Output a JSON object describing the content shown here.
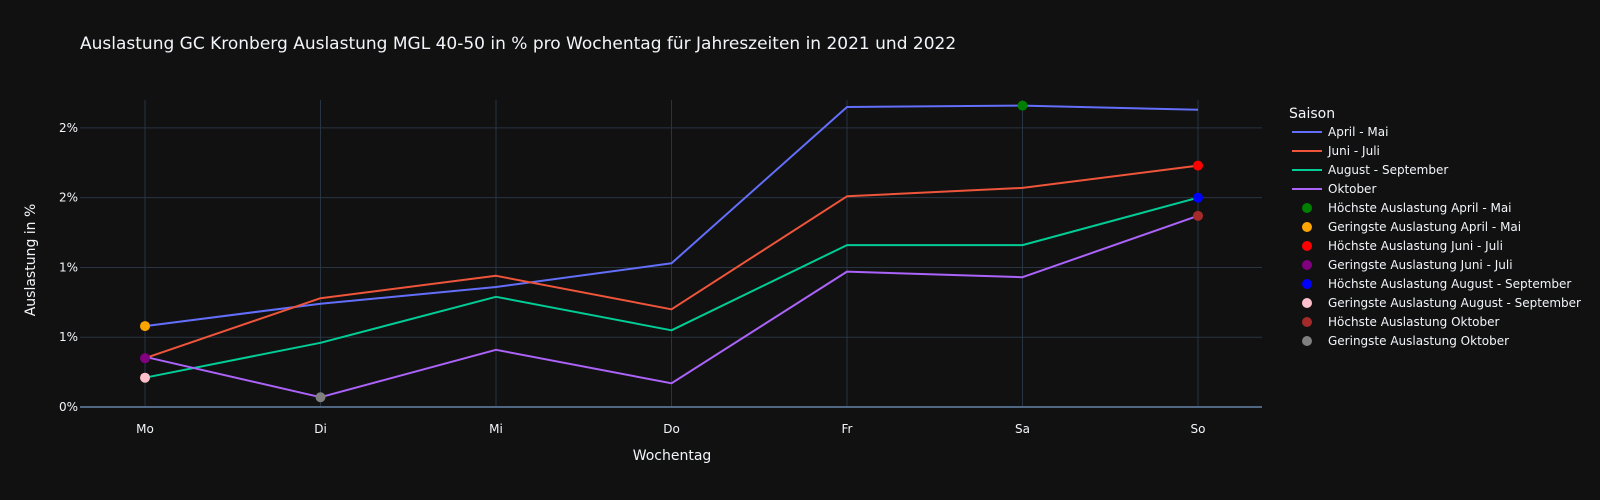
{
  "chart_data": {
    "type": "line",
    "title": "Auslastung GC Kronberg Auslastung MGL 40-50 in % pro Wochentag für Jahreszeiten in 2021 und 2022",
    "xlabel": "Wochentag",
    "ylabel": "Auslastung in %",
    "categories": [
      "Mo",
      "Di",
      "Mi",
      "Do",
      "Fr",
      "Sa",
      "So"
    ],
    "y_tick_values": [
      0,
      0.5,
      1.0,
      1.5,
      2.0
    ],
    "y_tick_labels": [
      "0%",
      "1%",
      "1%",
      "2%",
      "2%"
    ],
    "ylim": [
      0,
      2.2
    ],
    "grid": true,
    "legend_title": "Saison",
    "legend_position": "right",
    "series": [
      {
        "name": "April - Mai",
        "color": "#636efa",
        "values": [
          0.58,
          0.74,
          0.86,
          1.03,
          2.15,
          2.16,
          2.13
        ]
      },
      {
        "name": "Juni - Juli",
        "color": "#ef553b",
        "values": [
          0.35,
          0.78,
          0.94,
          0.7,
          1.51,
          1.57,
          1.73
        ]
      },
      {
        "name": "August - September",
        "color": "#00cc96",
        "values": [
          0.21,
          0.46,
          0.79,
          0.55,
          1.16,
          1.16,
          1.5
        ]
      },
      {
        "name": "Oktober",
        "color": "#ab63fa",
        "values": [
          0.36,
          0.07,
          0.41,
          0.17,
          0.97,
          0.93,
          1.37
        ]
      }
    ],
    "markers": [
      {
        "name": "Höchste Auslastung April - Mai",
        "color": "#008000",
        "x": "Sa",
        "y": 2.16
      },
      {
        "name": "Geringste Auslastung April - Mai",
        "color": "#ffa500",
        "x": "Mo",
        "y": 0.58
      },
      {
        "name": "Höchste Auslastung Juni - Juli",
        "color": "#ff0000",
        "x": "So",
        "y": 1.73
      },
      {
        "name": "Geringste Auslastung Juni - Juli",
        "color": "#800080",
        "x": "Mo",
        "y": 0.35
      },
      {
        "name": "Höchste Auslastung August - September",
        "color": "#0000ff",
        "x": "So",
        "y": 1.5
      },
      {
        "name": "Geringste Auslastung August - September",
        "color": "#ffc0cb",
        "x": "Mo",
        "y": 0.21
      },
      {
        "name": "Höchste Auslastung Oktober",
        "color": "#a52a2a",
        "x": "So",
        "y": 1.37
      },
      {
        "name": "Geringste Auslastung Oktober",
        "color": "#808080",
        "x": "Di",
        "y": 0.07
      }
    ]
  }
}
